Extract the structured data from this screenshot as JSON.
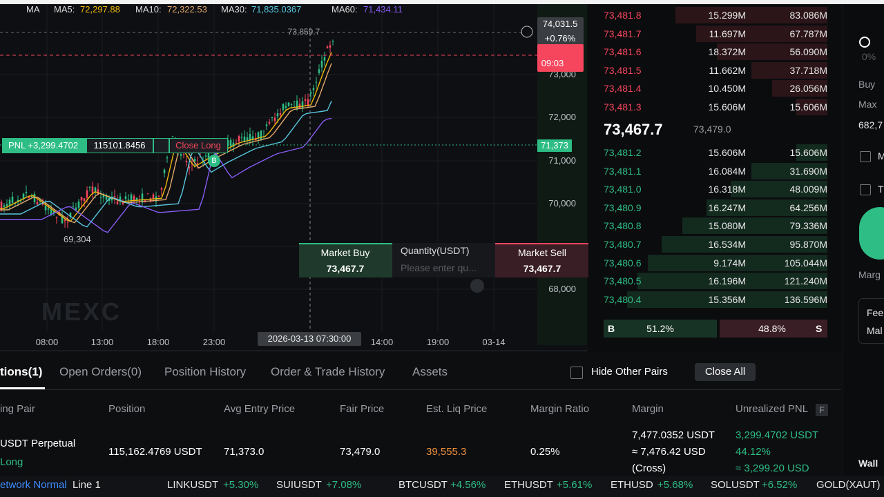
{
  "chart": {
    "ma_legend": [
      "MA",
      "MA5:",
      "72,297.88",
      "MA10:",
      "72,322.53",
      "MA30:",
      "71,835.0367",
      "MA60:",
      "71,434.11"
    ],
    "price_axis": [
      "73,000",
      "72,000",
      "71,000",
      "70,000",
      "68,000"
    ],
    "time_axis": [
      "08:00",
      "13:00",
      "18:00",
      "23:00",
      "14:00",
      "19:00",
      "03-14"
    ],
    "crosshair_time": "2026-03-13 07:30:00",
    "crosshair_price": "73,859.7",
    "high_label": "74,031.5",
    "change": "+0.76%",
    "countdown": "09:03",
    "entry_price_tag": "71,373",
    "low_label": "69,304",
    "position_bar": {
      "pnl": "PNL +3,299.4702",
      "size": "115101.8456",
      "action": "Close Long",
      "marker": "B"
    },
    "watermark": "MEXC",
    "quick_trade": {
      "buy_label": "Market Buy",
      "buy_price": "73,467.7",
      "quantity_label": "Quantity(USDT)",
      "placeholder": "Please enter qu...",
      "sell_label": "Market Sell",
      "sell_price": "73,467.7"
    }
  },
  "order_book": {
    "asks": [
      [
        "73,481.8",
        "15.299M",
        "83.086M"
      ],
      [
        "73,481.7",
        "11.697M",
        "67.787M"
      ],
      [
        "73,481.6",
        "18.372M",
        "56.090M"
      ],
      [
        "73,481.5",
        "11.662M",
        "37.718M"
      ],
      [
        "73,481.4",
        "10.450M",
        "26.056M"
      ],
      [
        "73,481.3",
        "15.606M",
        "15.606M"
      ]
    ],
    "last_price": "73,467.7",
    "mark_price": "73,479.0",
    "bids": [
      [
        "73,481.2",
        "15.606M",
        "15.606M"
      ],
      [
        "73,481.1",
        "16.084M",
        "31.690M"
      ],
      [
        "73,481.0",
        "16.318M",
        "48.009M"
      ],
      [
        "73,480.9",
        "16.247M",
        "64.256M"
      ],
      [
        "73,480.8",
        "15.080M",
        "79.336M"
      ],
      [
        "73,480.7",
        "16.534M",
        "95.870M"
      ],
      [
        "73,480.6",
        "9.174M",
        "105.044M"
      ],
      [
        "73,480.5",
        "16.196M",
        "121.240M"
      ],
      [
        "73,480.4",
        "15.356M",
        "136.596M"
      ]
    ],
    "buy_ratio_label": "B",
    "buy_ratio": "51.2%",
    "sell_ratio": "48.8%",
    "sell_ratio_label": "S"
  },
  "side_panel": {
    "percent": "0%",
    "buy": "Buy",
    "max": "Max",
    "max_value": "682,7",
    "checkbox_1": "M",
    "checkbox_2": "T",
    "margin": "Marg",
    "fee": "Fee",
    "maker": "Mal",
    "wallet": "Wall"
  },
  "tabs": [
    "tions(1)",
    "Open Orders(0)",
    "Position History",
    "Order & Trade History",
    "Assets"
  ],
  "toolbar": {
    "hide_other_pairs": "Hide Other Pairs",
    "close_all": "Close All"
  },
  "table": {
    "headers": [
      "ing Pair",
      "Position",
      "Avg Entry Price",
      "Fair Price",
      "Est. Liq Price",
      "Margin Ratio",
      "Margin",
      "Unrealized PNL"
    ],
    "pnl_badge": "F",
    "rows": [
      {
        "pair": "USDT",
        "contract": "Perpetual",
        "side": "Long",
        "position": "115,162.4769 USDT",
        "avg_entry": "71,373.0",
        "fair_price": "73,479.0",
        "liq_price": "39,555.3",
        "margin_ratio": "0.25%",
        "margin": [
          "7,477.0352 USDT",
          "≈ 7,476.42 USD",
          "(Cross)"
        ],
        "pnl": [
          "3,299.4702 USDT",
          "44.12%",
          "≈ 3,299.20 USD"
        ]
      }
    ]
  },
  "status_bar": {
    "network": "etwork Normal",
    "line": "Line 1",
    "tickers": [
      {
        "symbol": "LINKUSDT",
        "change": "+5.30%"
      },
      {
        "symbol": "SUIUSDT",
        "change": "+7.08%"
      },
      {
        "symbol": "BTCUSDT",
        "change": "+4.56%"
      },
      {
        "symbol": "ETHUSDT",
        "change": "+5.61%"
      },
      {
        "symbol": "ETHUSD",
        "change": "+5.68%"
      },
      {
        "symbol": "SOLUSDT",
        "change": "+6.52%"
      },
      {
        "symbol": "GOLD(XAUT)"
      }
    ]
  }
}
